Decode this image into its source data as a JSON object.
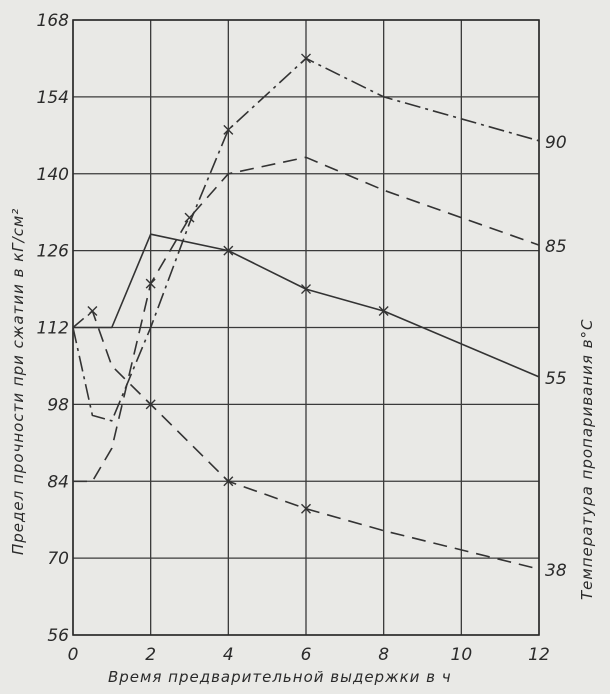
{
  "chart_data": {
    "type": "line",
    "xlabel": "Время предварительной выдержки в ч",
    "ylabel": "Предел прочности при сжатии в кГ/см²",
    "y2label": "Температура пропаривания в°С",
    "xlim": [
      0,
      12
    ],
    "ylim": [
      56,
      168
    ],
    "x_ticks": [
      "0",
      "2",
      "4",
      "6",
      "8",
      "10",
      "12"
    ],
    "y_ticks": [
      "56",
      "70",
      "84",
      "98",
      "112",
      "126",
      "140",
      "154",
      "168"
    ],
    "grid": true,
    "series": [
      {
        "name": "90",
        "style": "dash-dot",
        "x": [
          0,
          0.5,
          1,
          2,
          3,
          4,
          6,
          8,
          12
        ],
        "y": [
          112,
          96,
          95,
          112,
          131,
          148,
          161,
          154,
          146
        ]
      },
      {
        "name": "85",
        "style": "dashed",
        "x": [
          0,
          0.5,
          1,
          2,
          3,
          4,
          6,
          8,
          12
        ],
        "y": [
          84,
          84,
          90,
          120,
          132,
          140,
          143,
          137,
          127
        ]
      },
      {
        "name": "55",
        "style": "solid",
        "x": [
          0,
          0.5,
          1,
          2,
          4,
          6,
          8,
          12
        ],
        "y": [
          112,
          112,
          112,
          129,
          126,
          119,
          115,
          103
        ]
      },
      {
        "name": "38",
        "style": "dashed",
        "x": [
          0,
          0.5,
          1,
          2,
          4,
          6,
          8,
          12
        ],
        "y": [
          112,
          115,
          105,
          98,
          84,
          79,
          75,
          68
        ]
      }
    ],
    "markers": [
      {
        "series": "90",
        "x": 4,
        "y": 148
      },
      {
        "series": "90",
        "x": 6,
        "y": 161
      },
      {
        "series": "85",
        "x": 3,
        "y": 132
      },
      {
        "series": "85",
        "x": 2,
        "y": 120
      },
      {
        "series": "55",
        "x": 4,
        "y": 126
      },
      {
        "series": "55",
        "x": 6,
        "y": 119
      },
      {
        "series": "55",
        "x": 8,
        "y": 115
      },
      {
        "series": "38",
        "x": 0.5,
        "y": 115
      },
      {
        "series": "38",
        "x": 2,
        "y": 98
      },
      {
        "series": "38",
        "x": 4,
        "y": 84
      },
      {
        "series": "38",
        "x": 6,
        "y": 79
      }
    ]
  }
}
